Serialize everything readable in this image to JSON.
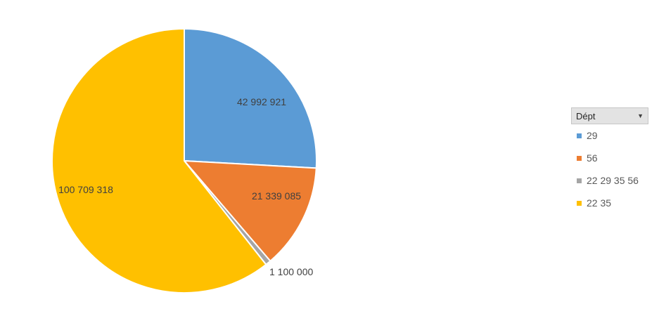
{
  "chart_data": {
    "type": "pie",
    "categories": [
      "29",
      "56",
      "22 29 35 56",
      "22 35"
    ],
    "values": [
      42992921,
      21339085,
      1100000,
      100709318
    ],
    "labels": [
      "42 992 921",
      "21 339 085",
      "1 100 000",
      "100 709 318"
    ],
    "colors": [
      "#5b9bd5",
      "#ed7d31",
      "#a5a5a5",
      "#ffc000"
    ],
    "start": "12 o'clock",
    "direction": "clockwise",
    "title": "",
    "legend": {
      "title": "Dépt",
      "placement": "right",
      "dropdown_icon": "triangle-down-icon"
    }
  }
}
